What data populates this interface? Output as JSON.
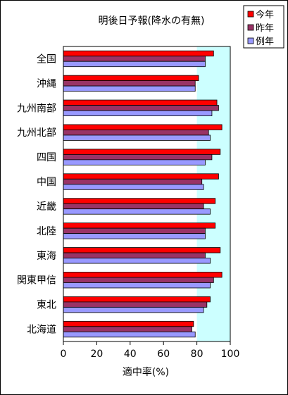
{
  "chart_data": {
    "type": "bar",
    "orientation": "horizontal",
    "title": "明後日予報(降水の有無)",
    "xlabel": "適中率(%)",
    "ylabel": "",
    "xlim": [
      0,
      100
    ],
    "xticks": [
      "0",
      "20",
      "40",
      "60",
      "80",
      "100"
    ],
    "highlight_range": [
      80,
      100
    ],
    "legend_position": "top-right",
    "categories": [
      "全国",
      "沖縄",
      "九州南部",
      "九州北部",
      "四国",
      "中国",
      "近畿",
      "北陸",
      "東海",
      "関東甲信",
      "東北",
      "北海道"
    ],
    "series": [
      {
        "name": "今年",
        "color": "#ff0000",
        "values": [
          90,
          81,
          92,
          95,
          94,
          93,
          91,
          91,
          94,
          95,
          88,
          78
        ]
      },
      {
        "name": "昨年",
        "color": "#993366",
        "values": [
          85,
          79,
          93,
          87,
          89,
          83,
          84,
          85,
          85,
          90,
          86,
          77
        ]
      },
      {
        "name": "例年",
        "color": "#9999ff",
        "values": [
          85,
          79,
          89,
          88,
          85,
          84,
          88,
          85,
          88,
          88,
          84,
          79
        ]
      }
    ]
  }
}
